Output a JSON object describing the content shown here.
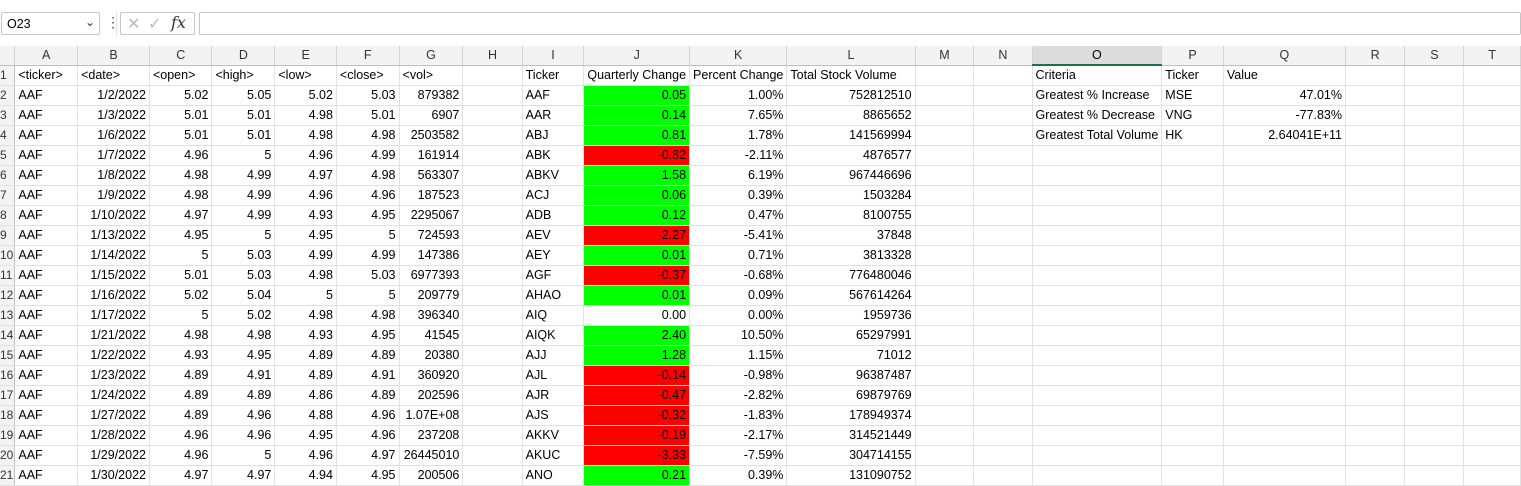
{
  "formula_bar": {
    "name_box": "O23",
    "name_box_arrow": "⌄",
    "more": "⋮",
    "cancel_icon": "✕",
    "enter_icon": "✓",
    "fx_icon": "fx",
    "formula": ""
  },
  "columns": [
    "A",
    "B",
    "C",
    "D",
    "E",
    "F",
    "G",
    "H",
    "I",
    "J",
    "K",
    "L",
    "M",
    "N",
    "O",
    "P",
    "Q",
    "R",
    "S",
    "T"
  ],
  "selected_column": "O",
  "row_headers": [
    "1",
    "2",
    "3",
    "4",
    "5",
    "6",
    "7",
    "8",
    "9",
    "10",
    "11",
    "12",
    "13",
    "14",
    "15",
    "16",
    "17",
    "18",
    "19",
    "20",
    "21"
  ],
  "headers": {
    "ticker": "<ticker>",
    "date": "<date>",
    "open": "<open>",
    "high": "<high>",
    "low": "<low>",
    "close": "<close>",
    "vol": "<vol>",
    "summary_ticker": "Ticker",
    "quarterly": "Quarterly Change",
    "percent": "Percent Change",
    "total": "Total Stock Volume",
    "criteria": "Criteria",
    "result_ticker": "Ticker",
    "value": "Value"
  },
  "raw_rows": [
    [
      "AAF",
      "1/2/2022",
      "5.02",
      "5.05",
      "5.02",
      "5.03",
      "879382"
    ],
    [
      "AAF",
      "1/3/2022",
      "5.01",
      "5.01",
      "4.98",
      "5.01",
      "6907"
    ],
    [
      "AAF",
      "1/6/2022",
      "5.01",
      "5.01",
      "4.98",
      "4.98",
      "2503582"
    ],
    [
      "AAF",
      "1/7/2022",
      "4.96",
      "5",
      "4.96",
      "4.99",
      "161914"
    ],
    [
      "AAF",
      "1/8/2022",
      "4.98",
      "4.99",
      "4.97",
      "4.98",
      "563307"
    ],
    [
      "AAF",
      "1/9/2022",
      "4.98",
      "4.99",
      "4.96",
      "4.96",
      "187523"
    ],
    [
      "AAF",
      "1/10/2022",
      "4.97",
      "4.99",
      "4.93",
      "4.95",
      "2295067"
    ],
    [
      "AAF",
      "1/13/2022",
      "4.95",
      "5",
      "4.95",
      "5",
      "724593"
    ],
    [
      "AAF",
      "1/14/2022",
      "5",
      "5.03",
      "4.99",
      "4.99",
      "147386"
    ],
    [
      "AAF",
      "1/15/2022",
      "5.01",
      "5.03",
      "4.98",
      "5.03",
      "6977393"
    ],
    [
      "AAF",
      "1/16/2022",
      "5.02",
      "5.04",
      "5",
      "5",
      "209779"
    ],
    [
      "AAF",
      "1/17/2022",
      "5",
      "5.02",
      "4.98",
      "4.98",
      "396340"
    ],
    [
      "AAF",
      "1/21/2022",
      "4.98",
      "4.98",
      "4.93",
      "4.95",
      "41545"
    ],
    [
      "AAF",
      "1/22/2022",
      "4.93",
      "4.95",
      "4.89",
      "4.89",
      "20380"
    ],
    [
      "AAF",
      "1/23/2022",
      "4.89",
      "4.91",
      "4.89",
      "4.91",
      "360920"
    ],
    [
      "AAF",
      "1/24/2022",
      "4.89",
      "4.89",
      "4.86",
      "4.89",
      "202596"
    ],
    [
      "AAF",
      "1/27/2022",
      "4.89",
      "4.96",
      "4.88",
      "4.96",
      "1.07E+08"
    ],
    [
      "AAF",
      "1/28/2022",
      "4.96",
      "4.96",
      "4.95",
      "4.96",
      "237208"
    ],
    [
      "AAF",
      "1/29/2022",
      "4.96",
      "5",
      "4.96",
      "4.97",
      "26445010"
    ],
    [
      "AAF",
      "1/30/2022",
      "4.97",
      "4.97",
      "4.94",
      "4.95",
      "200506"
    ]
  ],
  "summary_rows": [
    [
      "AAF",
      "0.05",
      "1.00%",
      "752812510"
    ],
    [
      "AAR",
      "0.14",
      "7.65%",
      "8865652"
    ],
    [
      "ABJ",
      "0.81",
      "1.78%",
      "141569994"
    ],
    [
      "ABK",
      "-0.82",
      "-2.11%",
      "4876577"
    ],
    [
      "ABKV",
      "1.58",
      "6.19%",
      "967446696"
    ],
    [
      "ACJ",
      "0.06",
      "0.39%",
      "1503284"
    ],
    [
      "ADB",
      "0.12",
      "0.47%",
      "8100755"
    ],
    [
      "AEV",
      "-2.27",
      "-5.41%",
      "37848"
    ],
    [
      "AEY",
      "0.01",
      "0.71%",
      "3813328"
    ],
    [
      "AGF",
      "-0.37",
      "-0.68%",
      "776480046"
    ],
    [
      "AHAO",
      "0.01",
      "0.09%",
      "567614264"
    ],
    [
      "AIQ",
      "0.00",
      "0.00%",
      "1959736"
    ],
    [
      "AIQK",
      "2.40",
      "10.50%",
      "65297991"
    ],
    [
      "AJJ",
      "1.28",
      "1.15%",
      "71012"
    ],
    [
      "AJL",
      "-0.14",
      "-0.98%",
      "96387487"
    ],
    [
      "AJR",
      "-0.47",
      "-2.82%",
      "69879769"
    ],
    [
      "AJS",
      "-0.32",
      "-1.83%",
      "178949374"
    ],
    [
      "AKKV",
      "-0.19",
      "-2.17%",
      "314521449"
    ],
    [
      "AKUC",
      "-3.33",
      "-7.59%",
      "304714155"
    ],
    [
      "ANO",
      "0.21",
      "0.39%",
      "131090752"
    ]
  ],
  "quarterly_status": [
    "pos",
    "pos",
    "pos",
    "neg",
    "pos",
    "pos",
    "pos",
    "neg",
    "pos",
    "neg",
    "pos",
    "zero",
    "pos",
    "pos",
    "neg",
    "neg",
    "neg",
    "neg",
    "neg",
    "pos"
  ],
  "colors": {
    "positive_fill": "#00ff00",
    "negative_fill": "#ff0000",
    "selection_accent": "#1e7145"
  },
  "results": [
    [
      "Greatest % Increase",
      "MSE",
      "47.01%"
    ],
    [
      "Greatest % Decrease",
      "VNG",
      "-77.83%"
    ],
    [
      "Greatest Total Volume",
      "HK",
      "2.64041E+11"
    ]
  ]
}
